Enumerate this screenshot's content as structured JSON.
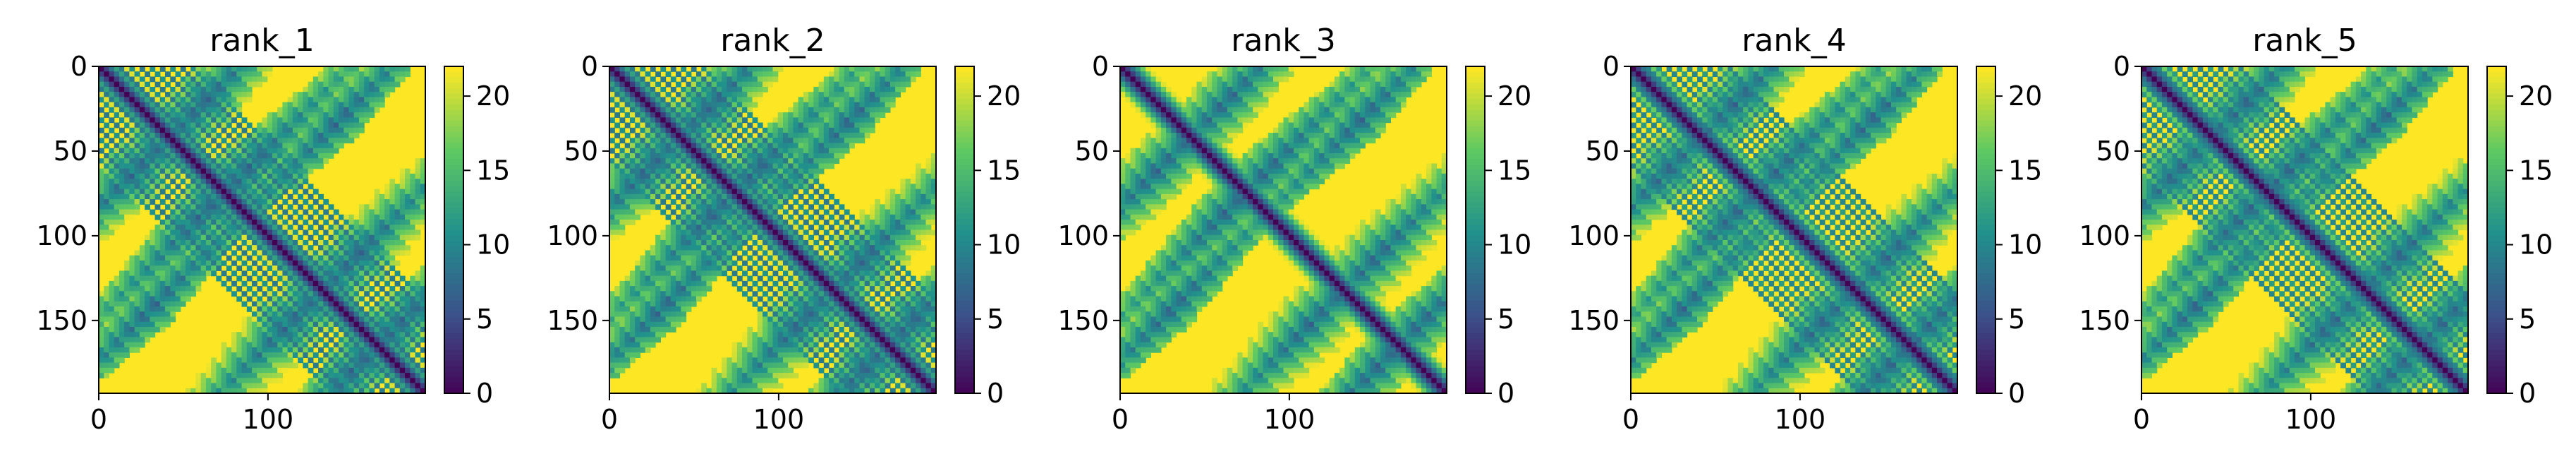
{
  "chart_data": [
    {
      "type": "heatmap",
      "title": "rank_1",
      "xlim": [
        0,
        193
      ],
      "ylim": [
        193,
        0
      ],
      "x_ticks": [
        0,
        100
      ],
      "y_ticks": [
        0,
        50,
        100,
        150
      ],
      "colorbar": {
        "range": [
          0,
          22
        ],
        "ticks": [
          0,
          5,
          10,
          15,
          20
        ]
      },
      "colormap": [
        "#440154",
        "#3b528b",
        "#21918c",
        "#5ec962",
        "#fde725"
      ]
    },
    {
      "type": "heatmap",
      "title": "rank_2",
      "xlim": [
        0,
        193
      ],
      "ylim": [
        193,
        0
      ],
      "x_ticks": [
        0,
        100
      ],
      "y_ticks": [
        0,
        50,
        100,
        150
      ],
      "colorbar": {
        "range": [
          0,
          22
        ],
        "ticks": [
          0,
          5,
          10,
          15,
          20
        ]
      },
      "colormap": [
        "#440154",
        "#3b528b",
        "#21918c",
        "#5ec962",
        "#fde725"
      ]
    },
    {
      "type": "heatmap",
      "title": "rank_3",
      "xlim": [
        0,
        193
      ],
      "ylim": [
        193,
        0
      ],
      "x_ticks": [
        0,
        100
      ],
      "y_ticks": [
        0,
        50,
        100,
        150
      ],
      "colorbar": {
        "range": [
          0,
          22
        ],
        "ticks": [
          0,
          5,
          10,
          15,
          20
        ]
      },
      "colormap": [
        "#440154",
        "#3b528b",
        "#21918c",
        "#5ec962",
        "#fde725"
      ]
    },
    {
      "type": "heatmap",
      "title": "rank_4",
      "xlim": [
        0,
        193
      ],
      "ylim": [
        193,
        0
      ],
      "x_ticks": [
        0,
        100
      ],
      "y_ticks": [
        0,
        50,
        100,
        150
      ],
      "colorbar": {
        "range": [
          0,
          22
        ],
        "ticks": [
          0,
          5,
          10,
          15,
          20
        ]
      },
      "colormap": [
        "#440154",
        "#3b528b",
        "#21918c",
        "#5ec962",
        "#fde725"
      ]
    },
    {
      "type": "heatmap",
      "title": "rank_5",
      "xlim": [
        0,
        193
      ],
      "ylim": [
        193,
        0
      ],
      "x_ticks": [
        0,
        100
      ],
      "y_ticks": [
        0,
        50,
        100,
        150
      ],
      "colorbar": {
        "range": [
          0,
          22
        ],
        "ticks": [
          0,
          5,
          10,
          15,
          20
        ]
      },
      "colormap": [
        "#440154",
        "#3b528b",
        "#21918c",
        "#5ec962",
        "#fde725"
      ]
    }
  ]
}
